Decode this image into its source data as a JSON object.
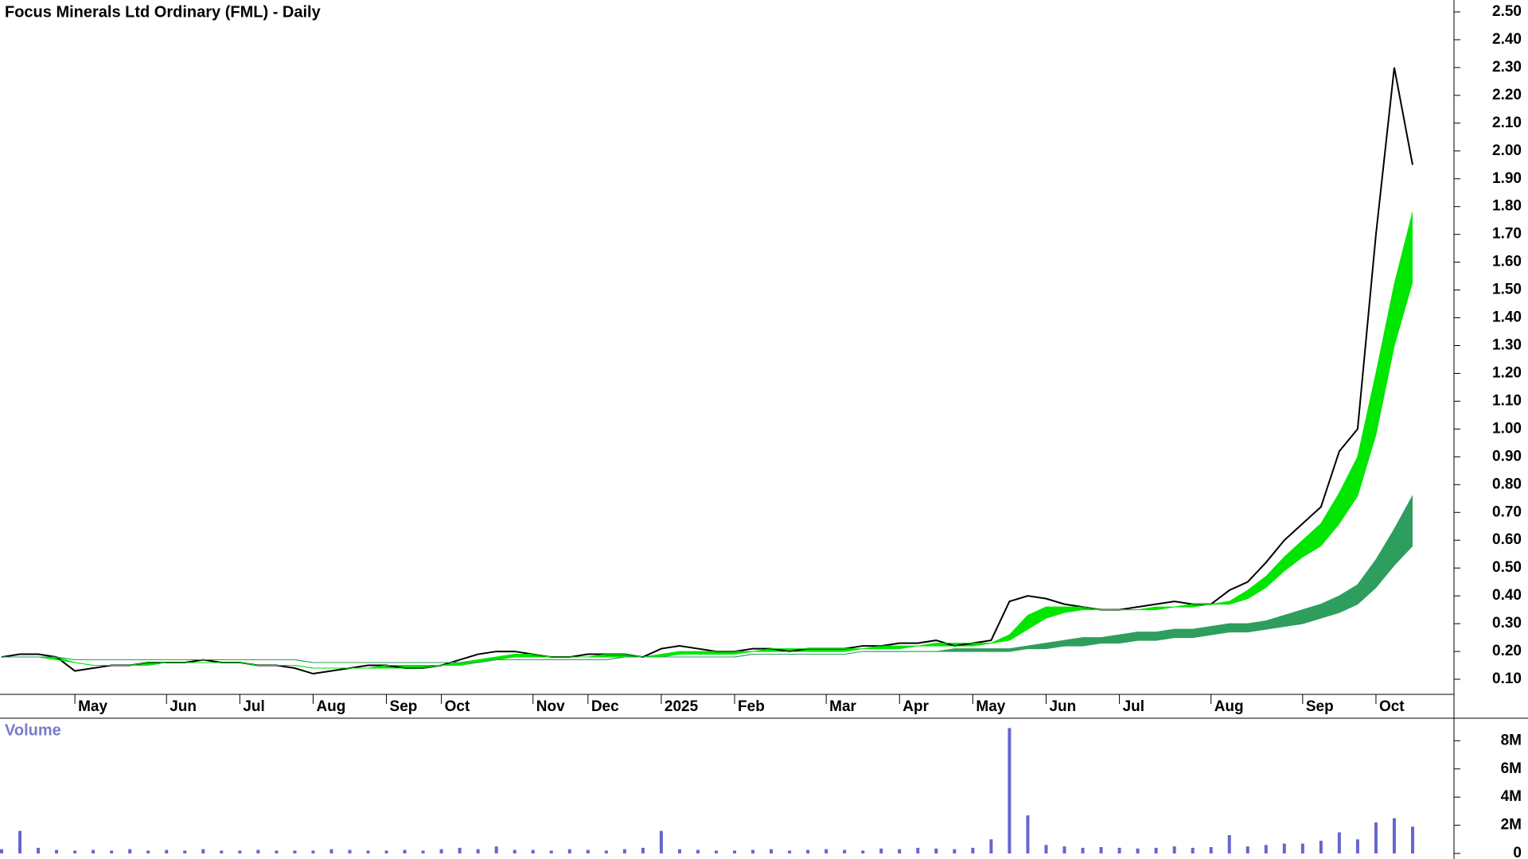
{
  "chart_data": [
    {
      "type": "line",
      "title": "Focus Minerals Ltd Ordinary (FML) - Daily",
      "categories": [
        null,
        null,
        null,
        null,
        "May",
        null,
        null,
        null,
        null,
        "Jun",
        null,
        null,
        null,
        "Jul",
        null,
        null,
        null,
        "Aug",
        null,
        null,
        null,
        "Sep",
        null,
        null,
        "Oct",
        null,
        null,
        null,
        null,
        "Nov",
        null,
        null,
        "Dec",
        null,
        null,
        null,
        "2025",
        null,
        null,
        null,
        "Feb",
        null,
        null,
        null,
        null,
        "Mar",
        null,
        null,
        null,
        "Apr",
        null,
        null,
        null,
        "May",
        null,
        null,
        null,
        "Jun",
        null,
        null,
        null,
        "Jul",
        null,
        null,
        null,
        null,
        "Aug",
        null,
        null,
        null,
        null,
        "Sep",
        null,
        null,
        null,
        "Oct",
        null,
        null
      ],
      "series": [
        {
          "color": "#000000",
          "values": [
            0.18,
            0.19,
            0.19,
            0.18,
            0.13,
            0.14,
            0.15,
            0.15,
            0.16,
            0.16,
            0.16,
            0.17,
            0.16,
            0.16,
            0.15,
            0.15,
            0.14,
            0.12,
            0.13,
            0.14,
            0.15,
            0.15,
            0.14,
            0.14,
            0.15,
            0.17,
            0.19,
            0.2,
            0.2,
            0.19,
            0.18,
            0.18,
            0.19,
            0.19,
            0.19,
            0.18,
            0.21,
            0.22,
            0.21,
            0.2,
            0.2,
            0.21,
            0.21,
            0.2,
            0.21,
            0.21,
            0.21,
            0.22,
            0.22,
            0.23,
            0.23,
            0.24,
            0.22,
            0.23,
            0.24,
            0.38,
            0.4,
            0.39,
            0.37,
            0.36,
            0.35,
            0.35,
            0.36,
            0.37,
            0.38,
            0.37,
            0.37,
            0.42,
            0.45,
            0.52,
            0.6,
            0.66,
            0.72,
            0.92,
            1.0,
            1.7,
            2.3,
            1.95
          ]
        },
        {
          "color": "#00e600",
          "values": [
            0.18,
            0.18,
            0.18,
            0.18,
            0.16,
            0.15,
            0.15,
            0.15,
            0.16,
            0.16,
            0.16,
            0.16,
            0.16,
            0.16,
            0.15,
            0.15,
            0.15,
            0.14,
            0.14,
            0.14,
            0.14,
            0.15,
            0.15,
            0.15,
            0.15,
            0.16,
            0.17,
            0.18,
            0.19,
            0.19,
            0.18,
            0.18,
            0.18,
            0.19,
            0.19,
            0.18,
            0.19,
            0.2,
            0.2,
            0.2,
            0.2,
            0.2,
            0.21,
            0.21,
            0.21,
            0.21,
            0.21,
            0.21,
            0.22,
            0.22,
            0.22,
            0.23,
            0.23,
            0.23,
            0.23,
            0.26,
            0.33,
            0.36,
            0.36,
            0.36,
            0.35,
            0.35,
            0.35,
            0.36,
            0.36,
            0.37,
            0.37,
            0.38,
            0.42,
            0.47,
            0.54,
            0.6,
            0.66,
            0.77,
            0.9,
            1.2,
            1.52,
            1.78
          ]
        },
        {
          "color": "#00e600",
          "values": [
            0.18,
            0.18,
            0.18,
            0.17,
            0.16,
            0.15,
            0.15,
            0.15,
            0.15,
            0.16,
            0.16,
            0.16,
            0.16,
            0.16,
            0.15,
            0.15,
            0.15,
            0.14,
            0.14,
            0.14,
            0.14,
            0.14,
            0.14,
            0.14,
            0.15,
            0.15,
            0.16,
            0.17,
            0.18,
            0.18,
            0.18,
            0.18,
            0.18,
            0.18,
            0.18,
            0.18,
            0.18,
            0.19,
            0.19,
            0.19,
            0.19,
            0.2,
            0.2,
            0.2,
            0.2,
            0.2,
            0.2,
            0.21,
            0.21,
            0.21,
            0.22,
            0.22,
            0.22,
            0.22,
            0.23,
            0.24,
            0.28,
            0.32,
            0.34,
            0.35,
            0.35,
            0.35,
            0.35,
            0.35,
            0.36,
            0.36,
            0.37,
            0.37,
            0.39,
            0.43,
            0.49,
            0.54,
            0.58,
            0.66,
            0.76,
            0.98,
            1.3,
            1.53
          ]
        },
        {
          "color": "#2e9e5e",
          "values": [
            0.18,
            0.18,
            0.18,
            0.18,
            0.17,
            0.17,
            0.17,
            0.17,
            0.17,
            0.17,
            0.17,
            0.17,
            0.17,
            0.17,
            0.17,
            0.17,
            0.17,
            0.16,
            0.16,
            0.16,
            0.16,
            0.16,
            0.16,
            0.16,
            0.16,
            0.16,
            0.16,
            0.17,
            0.17,
            0.17,
            0.17,
            0.17,
            0.17,
            0.17,
            0.18,
            0.18,
            0.18,
            0.18,
            0.18,
            0.18,
            0.18,
            0.19,
            0.19,
            0.19,
            0.19,
            0.19,
            0.19,
            0.2,
            0.2,
            0.2,
            0.2,
            0.2,
            0.21,
            0.21,
            0.21,
            0.21,
            0.22,
            0.23,
            0.24,
            0.25,
            0.25,
            0.26,
            0.27,
            0.27,
            0.28,
            0.28,
            0.29,
            0.3,
            0.3,
            0.31,
            0.33,
            0.35,
            0.37,
            0.4,
            0.44,
            0.53,
            0.64,
            0.76
          ]
        },
        {
          "color": "#2e9e5e",
          "values": [
            0.18,
            0.18,
            0.18,
            0.18,
            0.17,
            0.17,
            0.17,
            0.17,
            0.17,
            0.17,
            0.17,
            0.17,
            0.17,
            0.17,
            0.17,
            0.17,
            0.17,
            0.16,
            0.16,
            0.16,
            0.16,
            0.16,
            0.16,
            0.16,
            0.16,
            0.16,
            0.16,
            0.17,
            0.17,
            0.17,
            0.17,
            0.17,
            0.17,
            0.17,
            0.18,
            0.18,
            0.18,
            0.18,
            0.18,
            0.18,
            0.18,
            0.19,
            0.19,
            0.19,
            0.19,
            0.19,
            0.19,
            0.2,
            0.2,
            0.2,
            0.2,
            0.2,
            0.2,
            0.2,
            0.2,
            0.2,
            0.21,
            0.21,
            0.22,
            0.22,
            0.23,
            0.23,
            0.24,
            0.24,
            0.25,
            0.25,
            0.26,
            0.27,
            0.27,
            0.28,
            0.29,
            0.3,
            0.32,
            0.34,
            0.37,
            0.43,
            0.51,
            0.58
          ]
        }
      ],
      "ylim": [
        0.04,
        2.54
      ],
      "yticks": [
        {
          "value": 0.1,
          "label": "0.10"
        },
        {
          "value": 0.2,
          "label": "0.20"
        },
        {
          "value": 0.3,
          "label": "0.30"
        },
        {
          "value": 0.4,
          "label": "0.40"
        },
        {
          "value": 0.5,
          "label": "0.50"
        },
        {
          "value": 0.6,
          "label": "0.60"
        },
        {
          "value": 0.7,
          "label": "0.70"
        },
        {
          "value": 0.8,
          "label": "0.80"
        },
        {
          "value": 0.9,
          "label": "0.90"
        },
        {
          "value": 1.0,
          "label": "1.00"
        },
        {
          "value": 1.1,
          "label": "1.10"
        },
        {
          "value": 1.2,
          "label": "1.20"
        },
        {
          "value": 1.3,
          "label": "1.30"
        },
        {
          "value": 1.4,
          "label": "1.40"
        },
        {
          "value": 1.5,
          "label": "1.50"
        },
        {
          "value": 1.6,
          "label": "1.60"
        },
        {
          "value": 1.7,
          "label": "1.70"
        },
        {
          "value": 1.8,
          "label": "1.80"
        },
        {
          "value": 1.9,
          "label": "1.90"
        },
        {
          "value": 2.0,
          "label": "2.00"
        },
        {
          "value": 2.1,
          "label": "2.10"
        },
        {
          "value": 2.2,
          "label": "2.20"
        },
        {
          "value": 2.3,
          "label": "2.30"
        },
        {
          "value": 2.4,
          "label": "2.40"
        },
        {
          "value": 2.5,
          "label": "2.50"
        }
      ]
    },
    {
      "type": "bar",
      "title": "Volume",
      "color": "#6666cc",
      "values": [
        300000,
        1600000,
        400000,
        250000,
        200000,
        250000,
        200000,
        300000,
        200000,
        250000,
        200000,
        300000,
        200000,
        200000,
        250000,
        200000,
        200000,
        200000,
        300000,
        250000,
        200000,
        200000,
        250000,
        200000,
        300000,
        400000,
        300000,
        500000,
        250000,
        250000,
        200000,
        300000,
        250000,
        200000,
        300000,
        400000,
        1600000,
        300000,
        250000,
        200000,
        200000,
        250000,
        300000,
        200000,
        250000,
        300000,
        250000,
        200000,
        350000,
        300000,
        400000,
        350000,
        300000,
        400000,
        1000000,
        8900000,
        2700000,
        600000,
        500000,
        400000,
        450000,
        400000,
        350000,
        400000,
        500000,
        400000,
        450000,
        1300000,
        500000,
        600000,
        700000,
        700000,
        900000,
        1500000,
        1000000,
        2200000,
        2500000,
        1900000
      ],
      "ylim": [
        0,
        9600000
      ],
      "yticks": [
        0,
        {
          "value": 2000000,
          "label": "2M"
        },
        {
          "value": 4000000,
          "label": "4M"
        },
        {
          "value": 6000000,
          "label": "6M"
        },
        {
          "value": 8000000,
          "label": "8M"
        }
      ]
    }
  ]
}
